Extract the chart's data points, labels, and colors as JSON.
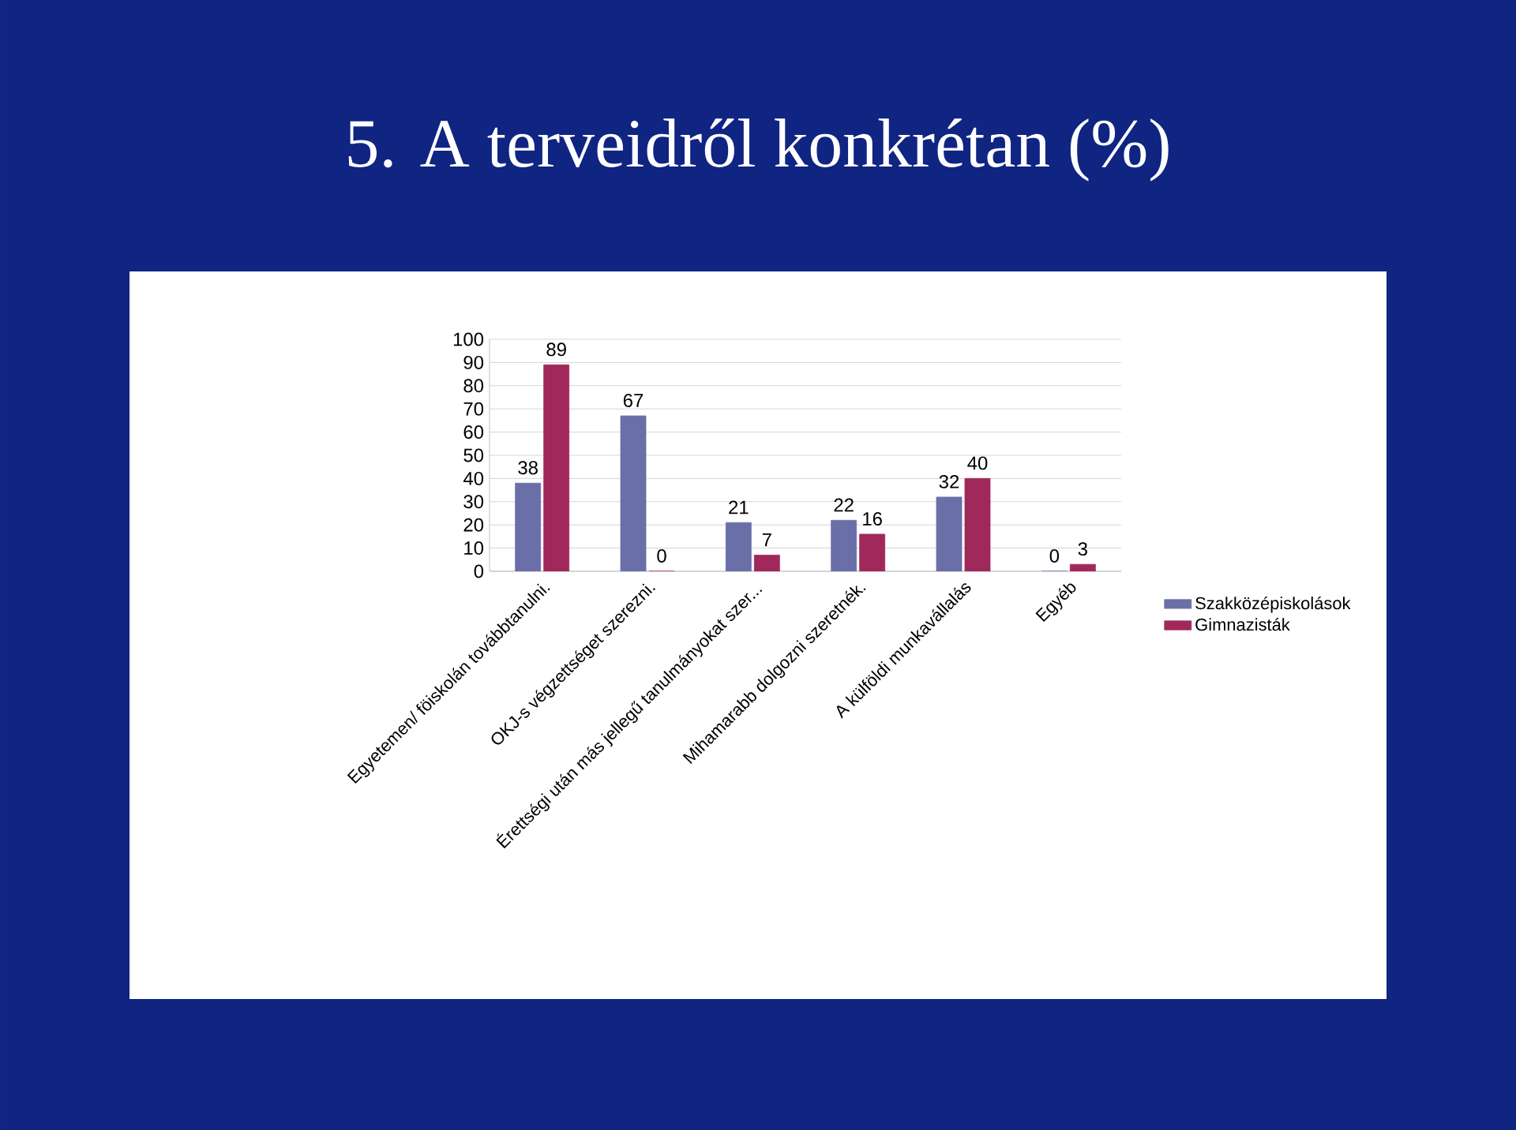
{
  "chart_data": {
    "type": "bar",
    "title": "5. A terveidről konkrétan  (%)",
    "categories": [
      "Egyetemen/ föiskolán továbbtanulni.",
      "OKJ-s végzettséget szerezni.",
      "Érettségi után más jellegű tanulmányokat szer...",
      "Mihamarabb dolgozni szeretnék.",
      "A külföldi munkavállalás",
      "Egyéb"
    ],
    "series": [
      {
        "name": "Szakközépiskolások",
        "color": "#6b6fa8",
        "values": [
          38,
          67,
          21,
          22,
          32,
          0
        ]
      },
      {
        "name": "Gimnazisták",
        "color": "#a0285a",
        "values": [
          89,
          0,
          7,
          16,
          40,
          3
        ]
      }
    ],
    "ylim": [
      0,
      100
    ],
    "yticks": [
      0,
      10,
      20,
      30,
      40,
      50,
      60,
      70,
      80,
      90,
      100
    ],
    "grid": "y",
    "legend": "right",
    "data_labels": true
  }
}
